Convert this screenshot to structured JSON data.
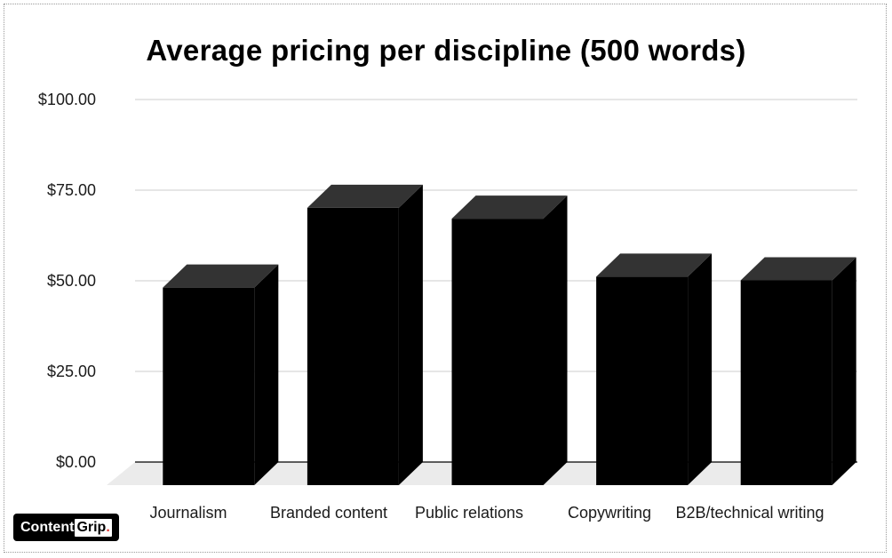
{
  "chart_data": {
    "type": "bar",
    "title": "Average pricing per discipline (500 words)",
    "categories": [
      "Journalism",
      "Branded content",
      "Public relations",
      "Copywriting",
      "B2B/technical writing"
    ],
    "values": [
      54.5,
      76.5,
      73.5,
      57.5,
      56.5
    ],
    "ylim": [
      0,
      100
    ],
    "yticks": [
      "$0.00",
      "$25.00",
      "$50.00",
      "$75.00",
      "$100.00"
    ],
    "ytick_values": [
      0,
      25,
      50,
      75,
      100
    ],
    "xlabel": "",
    "ylabel": "",
    "grid": true,
    "legend": "none",
    "style": "3d",
    "colors": {
      "bar_front": "#000000",
      "bar_top": "#333333",
      "floor": "#ebebeb",
      "grid": "#cccccc"
    }
  },
  "logo": {
    "text_main": "Content",
    "text_box": "Grip",
    "text_dot": "."
  }
}
